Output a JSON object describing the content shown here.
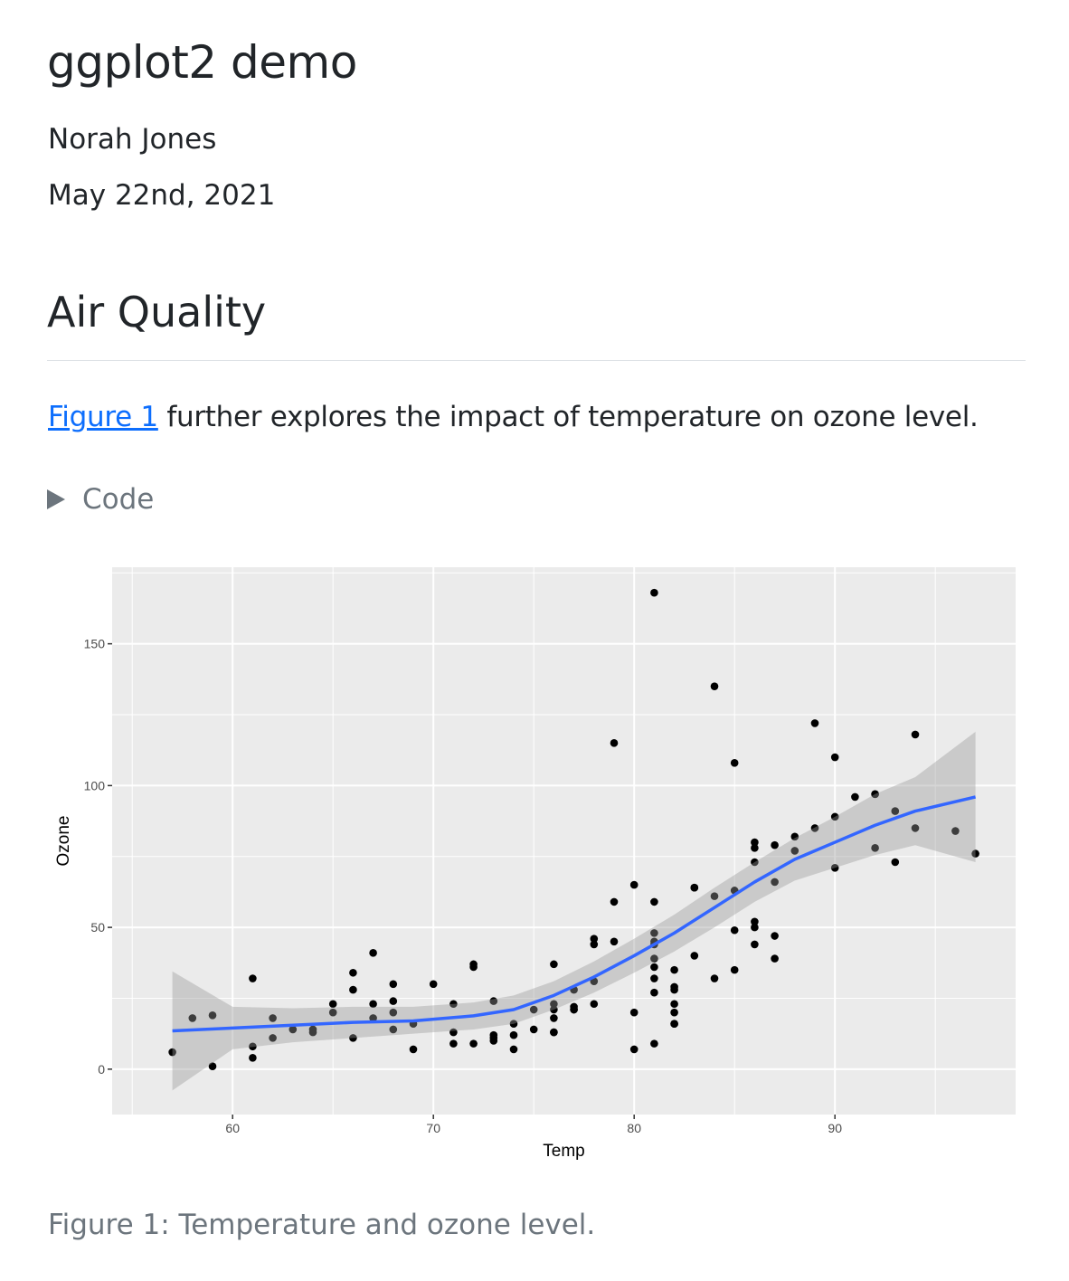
{
  "title": "ggplot2 demo",
  "author": "Norah Jones",
  "date": "May 22nd, 2021",
  "section_heading": "Air Quality",
  "paragraph": {
    "link_text": "Figure 1",
    "text": " further explores the impact of temperature on ozone level."
  },
  "code_toggle": "Code",
  "caption": "Figure 1: Temperature and ozone level.",
  "colors": {
    "panel": "#ebebeb",
    "grid": "#ffffff",
    "smooth": "#3366ff",
    "ribbon": "#999999",
    "link": "#0d6efd"
  },
  "chart_data": {
    "type": "scatter",
    "xlabel": "Temp",
    "ylabel": "Ozone",
    "xlim": [
      54,
      99
    ],
    "ylim": [
      -16,
      177
    ],
    "xticks": [
      60,
      70,
      80,
      90
    ],
    "yticks": [
      0,
      50,
      100,
      150
    ],
    "grid": true,
    "points": [
      [
        67,
        41
      ],
      [
        72,
        36
      ],
      [
        74,
        12
      ],
      [
        62,
        18
      ],
      [
        66,
        28
      ],
      [
        65,
        23
      ],
      [
        59,
        19
      ],
      [
        61,
        8
      ],
      [
        74,
        7
      ],
      [
        69,
        16
      ],
      [
        66,
        11
      ],
      [
        68,
        14
      ],
      [
        58,
        18
      ],
      [
        64,
        14
      ],
      [
        66,
        34
      ],
      [
        57,
        6
      ],
      [
        68,
        30
      ],
      [
        62,
        11
      ],
      [
        59,
        1
      ],
      [
        73,
        11
      ],
      [
        61,
        4
      ],
      [
        61,
        32
      ],
      [
        67,
        23
      ],
      [
        81,
        45
      ],
      [
        79,
        115
      ],
      [
        76,
        37
      ],
      [
        82,
        29
      ],
      [
        90,
        71
      ],
      [
        87,
        39
      ],
      [
        82,
        23
      ],
      [
        77,
        21
      ],
      [
        72,
        37
      ],
      [
        65,
        20
      ],
      [
        73,
        12
      ],
      [
        76,
        13
      ],
      [
        84,
        135
      ],
      [
        85,
        49
      ],
      [
        81,
        32
      ],
      [
        83,
        64
      ],
      [
        83,
        40
      ],
      [
        88,
        77
      ],
      [
        92,
        97
      ],
      [
        92,
        97
      ],
      [
        89,
        85
      ],
      [
        73,
        10
      ],
      [
        81,
        27
      ],
      [
        80,
        7
      ],
      [
        81,
        48
      ],
      [
        82,
        35
      ],
      [
        84,
        61
      ],
      [
        87,
        79
      ],
      [
        85,
        63
      ],
      [
        74,
        16
      ],
      [
        86,
        80
      ],
      [
        85,
        108
      ],
      [
        82,
        20
      ],
      [
        86,
        52
      ],
      [
        88,
        82
      ],
      [
        86,
        50
      ],
      [
        83,
        64
      ],
      [
        81,
        59
      ],
      [
        81,
        39
      ],
      [
        81,
        9
      ],
      [
        82,
        16
      ],
      [
        86,
        78
      ],
      [
        85,
        35
      ],
      [
        87,
        66
      ],
      [
        89,
        122
      ],
      [
        90,
        89
      ],
      [
        90,
        110
      ],
      [
        86,
        44
      ],
      [
        82,
        28
      ],
      [
        80,
        65
      ],
      [
        77,
        22
      ],
      [
        79,
        59
      ],
      [
        76,
        23
      ],
      [
        78,
        31
      ],
      [
        78,
        44
      ],
      [
        77,
        21
      ],
      [
        72,
        9
      ],
      [
        79,
        45
      ],
      [
        81,
        168
      ],
      [
        86,
        73
      ],
      [
        97,
        76
      ],
      [
        94,
        118
      ],
      [
        96,
        84
      ],
      [
        94,
        85
      ],
      [
        91,
        96
      ],
      [
        92,
        78
      ],
      [
        93,
        73
      ],
      [
        93,
        91
      ],
      [
        87,
        47
      ],
      [
        84,
        32
      ],
      [
        80,
        20
      ],
      [
        78,
        23
      ],
      [
        75,
        21
      ],
      [
        73,
        24
      ],
      [
        81,
        44
      ],
      [
        76,
        21
      ],
      [
        77,
        28
      ],
      [
        71,
        9
      ],
      [
        71,
        13
      ],
      [
        78,
        46
      ],
      [
        67,
        18
      ],
      [
        76,
        13
      ],
      [
        68,
        24
      ],
      [
        82,
        16
      ],
      [
        64,
        13
      ],
      [
        71,
        23
      ],
      [
        81,
        36
      ],
      [
        69,
        7
      ],
      [
        63,
        14
      ],
      [
        70,
        30
      ],
      [
        75,
        14
      ],
      [
        76,
        18
      ],
      [
        68,
        20
      ]
    ],
    "smooth": {
      "x": [
        57,
        60,
        63,
        66,
        69,
        72,
        74,
        76,
        78,
        80,
        82,
        84,
        86,
        88,
        90,
        92,
        94,
        97
      ],
      "y": [
        13.5,
        14.5,
        15.5,
        16.5,
        17,
        18.8,
        21,
        26,
        32.5,
        40,
        48,
        57,
        66,
        74,
        80,
        86,
        91,
        96
      ],
      "ymin": [
        -7.5,
        7,
        9.5,
        11,
        12.5,
        14,
        16,
        21,
        27,
        34,
        41.5,
        50,
        59,
        66.5,
        71,
        75.5,
        79,
        73
      ],
      "ymax": [
        34.5,
        22,
        21.5,
        22,
        22,
        23.5,
        26,
        31,
        38,
        46,
        54.5,
        64,
        73,
        81.5,
        89,
        97,
        103,
        119
      ]
    }
  }
}
